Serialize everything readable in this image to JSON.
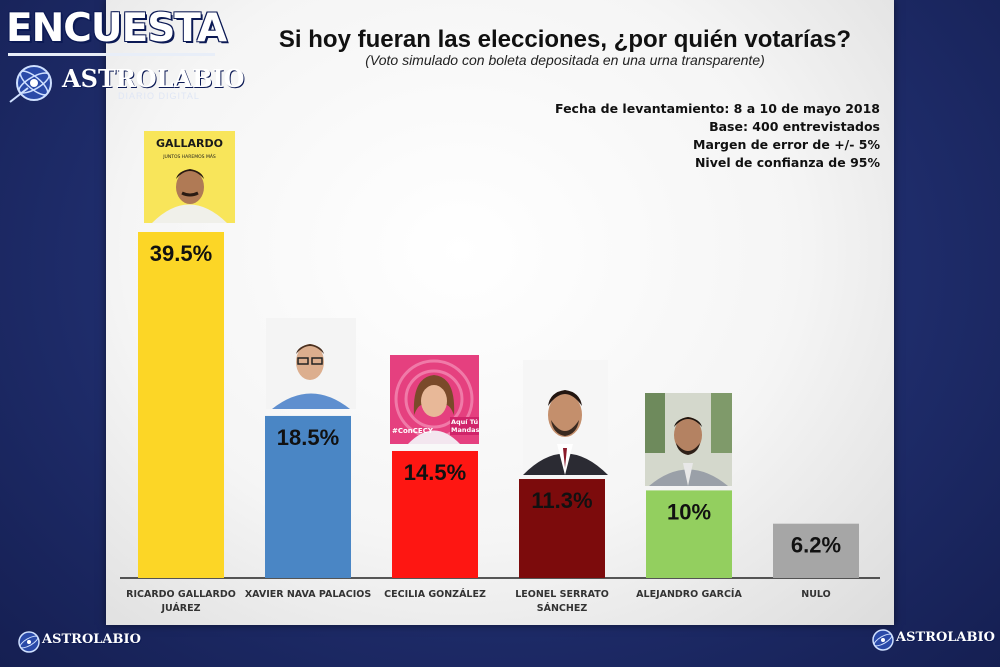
{
  "brand": {
    "title": "ENCUESTA",
    "logo_name": "ASTROLABIO",
    "logo_subtitle": "DIARIO DIGITAL"
  },
  "survey_info": [
    "Fecha de levantamiento: 8 a 10 de mayo 2018",
    "Base: 400 entrevistados",
    "Margen de error de +/- 5%",
    "Nivel de confianza de 95%"
  ],
  "photos": {
    "gallardo_brand": "GALLARDO",
    "gallardo_slogan": "JUNTOS HAREMOS MÁS",
    "gonzalez_tag": "#ConCECY",
    "gonzalez_slogan": "Aquí Tú Mandas"
  },
  "chart_data": {
    "type": "bar",
    "title": "Si hoy fueran las elecciones, ¿por quién votarías?",
    "subtitle": "(Voto simulado con boleta depositada en una urna transparente)",
    "categories": [
      "RICARDO GALLARDO JUÁREZ",
      "XAVIER NAVA PALACIOS",
      "CECILIA GONZÁLEZ",
      "LEONEL SERRATO SÁNCHEZ",
      "ALEJANDRO GARCÍA",
      "NULO"
    ],
    "category_lines": [
      [
        "RICARDO GALLARDO",
        "JUÁREZ"
      ],
      [
        "XAVIER NAVA PALACIOS"
      ],
      [
        "CECILIA GONZÁLEZ"
      ],
      [
        "LEONEL SERRATO",
        "SÁNCHEZ"
      ],
      [
        "ALEJANDRO GARCÍA"
      ],
      [
        "NULO"
      ]
    ],
    "values": [
      39.5,
      18.5,
      14.5,
      11.3,
      10,
      6.2
    ],
    "value_labels": [
      "39.5%",
      "18.5%",
      "14.5%",
      "11.3%",
      "10%",
      "6.2%"
    ],
    "colors": [
      "#fcd626",
      "#4a86c5",
      "#fe1612",
      "#7c0b0c",
      "#93cf5f",
      "#a6a6a6"
    ],
    "ylim": [
      0,
      40
    ],
    "grid": false,
    "legend": "none"
  }
}
